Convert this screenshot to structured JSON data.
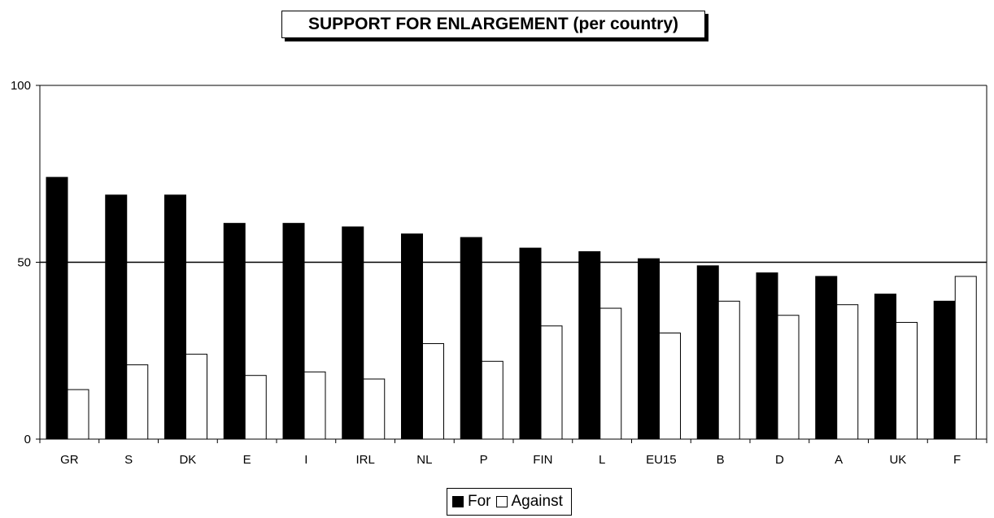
{
  "chart_data": {
    "type": "bar",
    "title": "SUPPORT FOR ENLARGEMENT (per country)",
    "categories": [
      "GR",
      "S",
      "DK",
      "E",
      "I",
      "IRL",
      "NL",
      "P",
      "FIN",
      "L",
      "EU15",
      "B",
      "D",
      "A",
      "UK",
      "F"
    ],
    "series": [
      {
        "name": "For",
        "color": "#000000",
        "values": [
          74,
          69,
          69,
          61,
          61,
          60,
          58,
          57,
          54,
          53,
          51,
          49,
          47,
          46,
          41,
          39
        ]
      },
      {
        "name": "Against",
        "color": "#ffffff",
        "values": [
          14,
          21,
          24,
          18,
          19,
          17,
          27,
          22,
          32,
          37,
          30,
          39,
          35,
          38,
          33,
          46
        ]
      }
    ],
    "yticks": [
      "0",
      "50",
      "100"
    ],
    "ylim": [
      0,
      100
    ],
    "reference_line": 50,
    "legend_position": "bottom"
  }
}
